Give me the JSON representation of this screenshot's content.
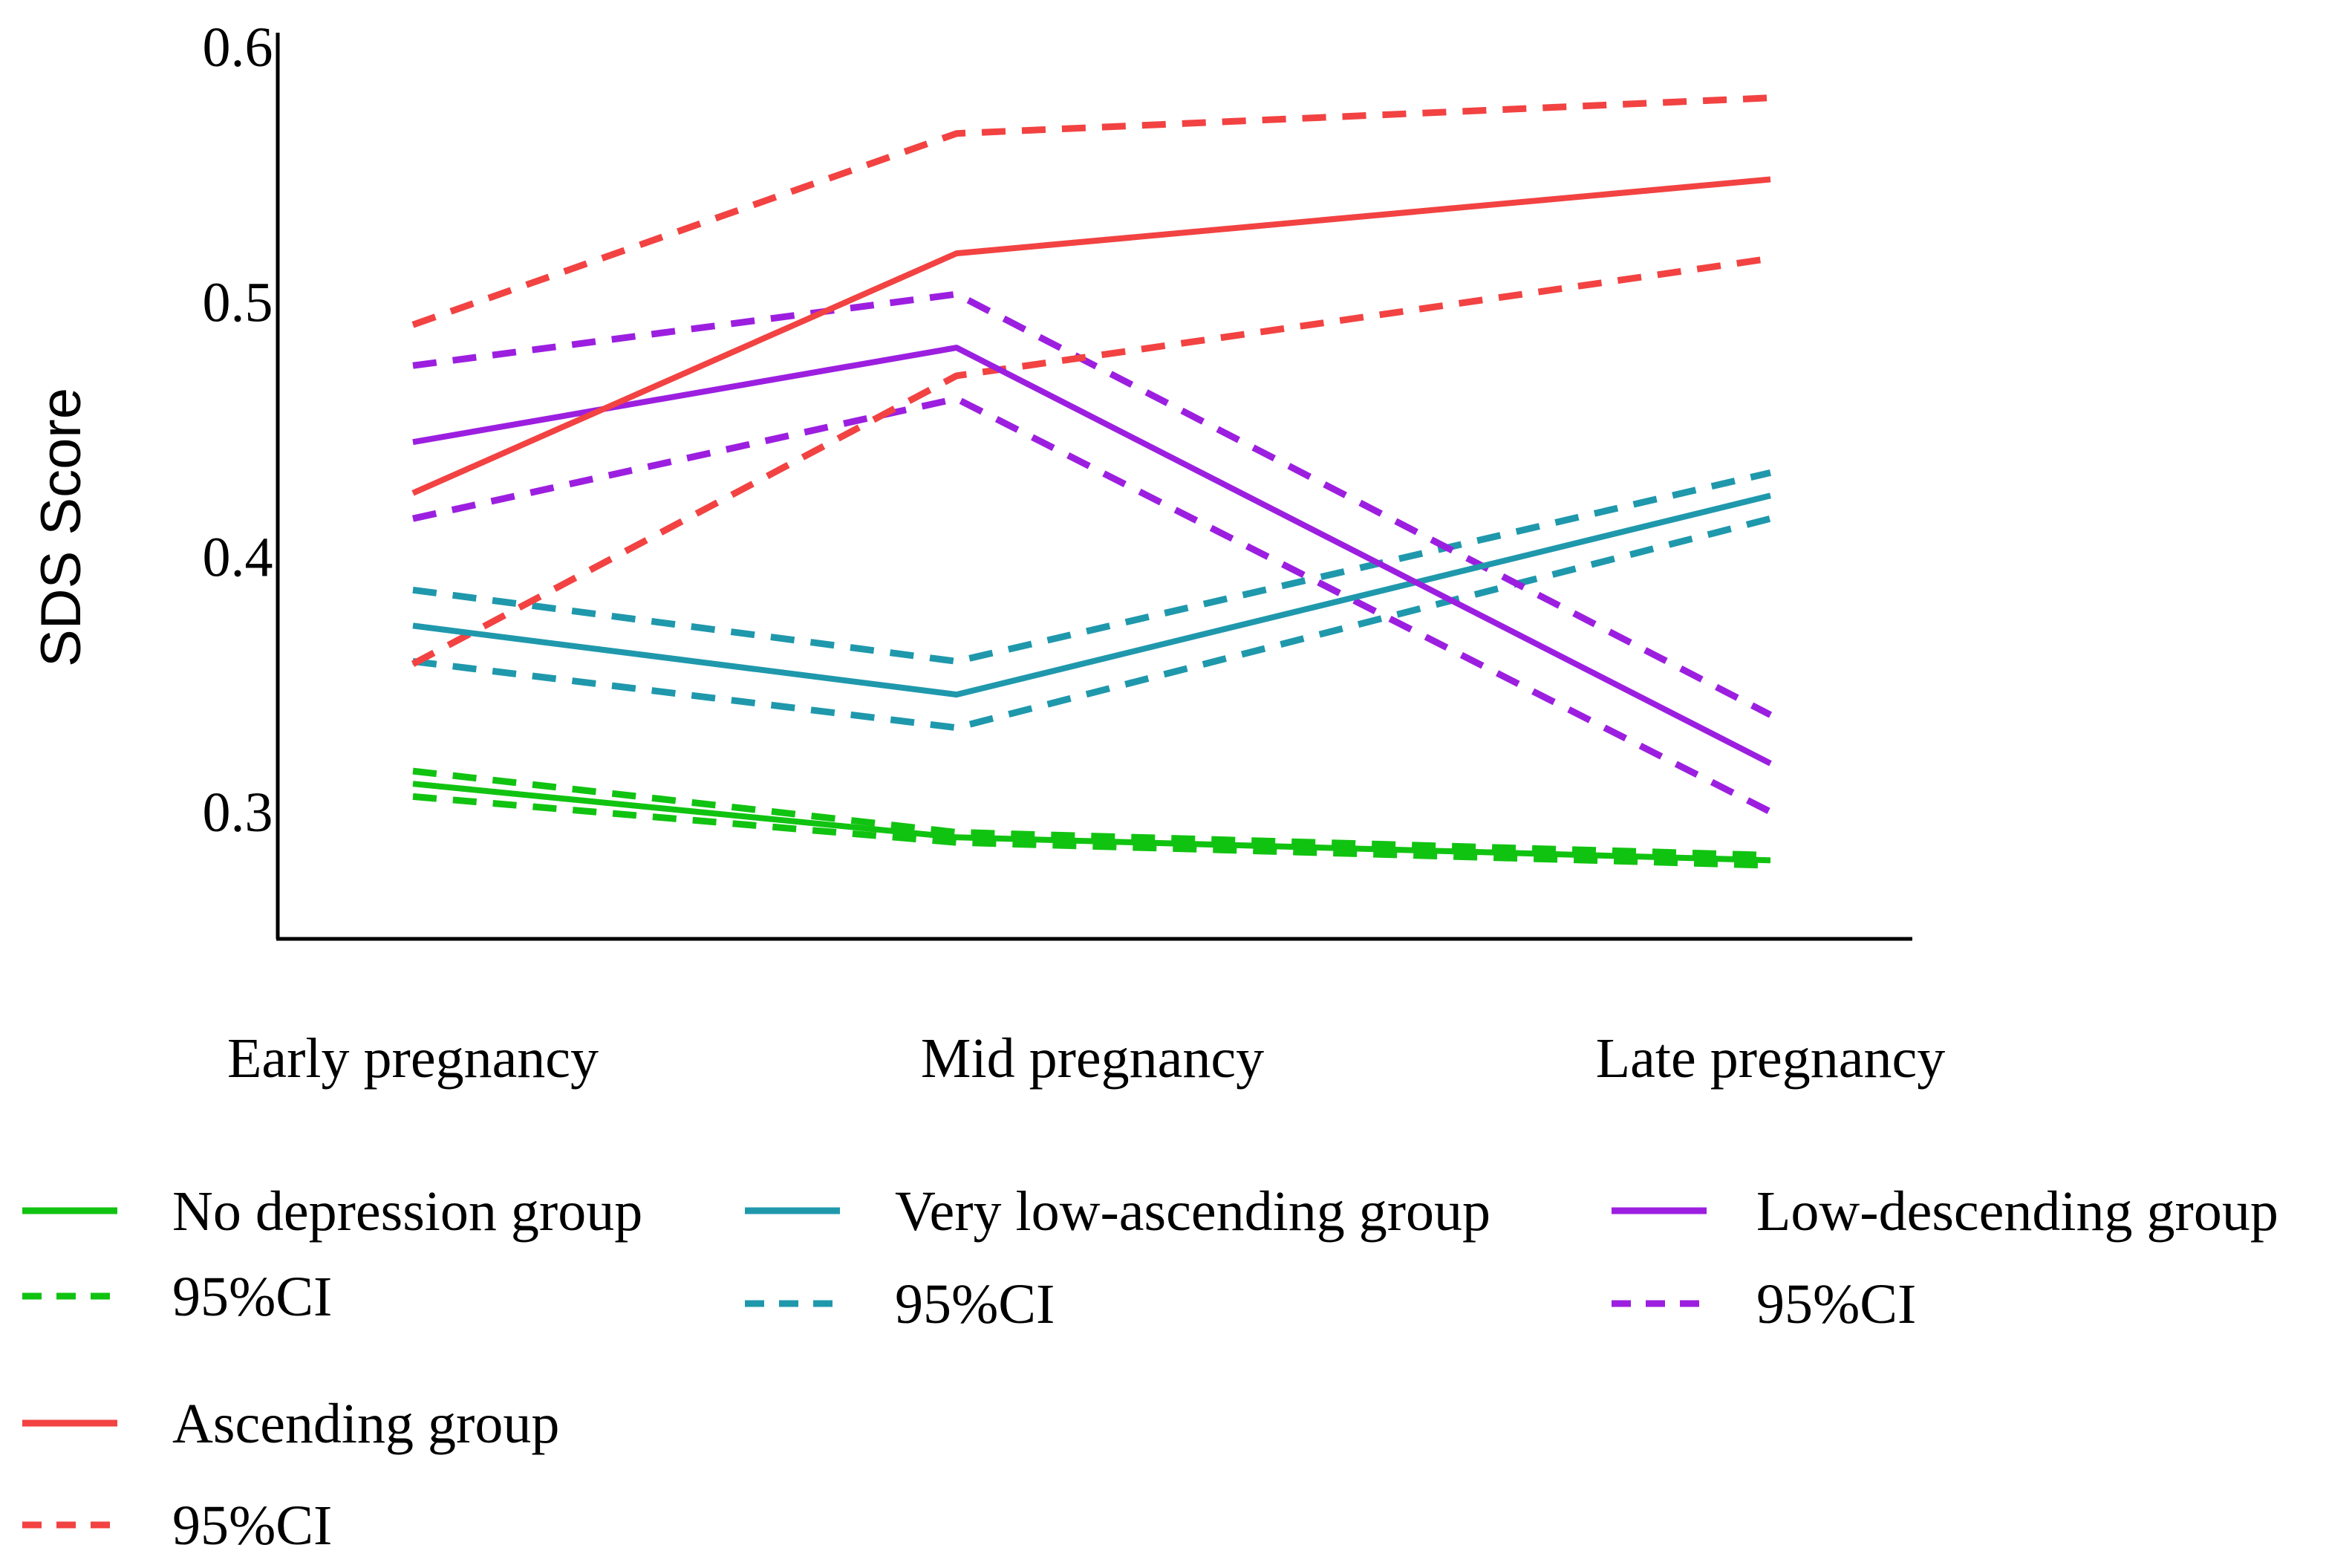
{
  "chart_data": {
    "type": "line",
    "title": "",
    "xlabel": "",
    "ylabel": "SDS Score",
    "categories": [
      "Early pregnancy",
      "Mid pregnancy",
      "Late pregnancy"
    ],
    "ylim": [
      0.25,
      0.6
    ],
    "yticks": [
      "0.3",
      "0.4",
      "0.5",
      "0.6"
    ],
    "ytick_values": [
      0.3,
      0.4,
      0.5,
      0.6
    ],
    "grid": false,
    "legend_position": "bottom",
    "series": [
      {
        "name": "No depression group",
        "style": "solid",
        "color": "#11c311",
        "values": [
          0.311,
          0.29,
          0.281
        ]
      },
      {
        "name": "95%CI",
        "group": "No depression group",
        "style": "dashed-upper",
        "color": "#11c311",
        "values": [
          0.316,
          0.292,
          0.283
        ]
      },
      {
        "name": "95%CI",
        "group": "No depression group",
        "style": "dashed-lower",
        "color": "#11c311",
        "values": [
          0.306,
          0.288,
          0.279
        ]
      },
      {
        "name": "Very low-ascending group",
        "style": "solid",
        "color": "#1f98ac",
        "values": [
          0.373,
          0.346,
          0.424
        ]
      },
      {
        "name": "95%CI",
        "group": "Very low-ascending group",
        "style": "dashed-upper",
        "color": "#1f98ac",
        "values": [
          0.387,
          0.359,
          0.433
        ]
      },
      {
        "name": "95%CI",
        "group": "Very low-ascending group",
        "style": "dashed-lower",
        "color": "#1f98ac",
        "values": [
          0.359,
          0.333,
          0.415
        ]
      },
      {
        "name": "Low-descending group",
        "style": "solid",
        "color": "#9c1fe0",
        "values": [
          0.445,
          0.482,
          0.319
        ]
      },
      {
        "name": "95%CI",
        "group": "Low-descending group",
        "style": "dashed-upper",
        "color": "#9c1fe0",
        "values": [
          0.475,
          0.503,
          0.338
        ]
      },
      {
        "name": "95%CI",
        "group": "Low-descending group",
        "style": "dashed-lower",
        "color": "#9c1fe0",
        "values": [
          0.415,
          0.462,
          0.3
        ]
      },
      {
        "name": "Ascending group",
        "style": "solid",
        "color": "#f24242",
        "values": [
          0.425,
          0.519,
          0.548
        ]
      },
      {
        "name": "95%CI",
        "group": "Ascending group",
        "style": "dashed-upper",
        "color": "#f24242",
        "values": [
          0.491,
          0.566,
          0.58
        ]
      },
      {
        "name": "95%CI",
        "group": "Ascending group",
        "style": "dashed-lower",
        "color": "#f24242",
        "values": [
          0.358,
          0.471,
          0.517
        ]
      }
    ],
    "legend": [
      {
        "label": "No depression group",
        "style": "solid",
        "color": "#11c311"
      },
      {
        "label": "95%CI",
        "style": "dashed",
        "color": "#11c311"
      },
      {
        "label": "Very low-ascending group",
        "style": "solid",
        "color": "#1f98ac"
      },
      {
        "label": "95%CI",
        "style": "dashed",
        "color": "#1f98ac"
      },
      {
        "label": "Low-descending group",
        "style": "solid",
        "color": "#9c1fe0"
      },
      {
        "label": "95%CI",
        "style": "dashed",
        "color": "#9c1fe0"
      },
      {
        "label": "Ascending group",
        "style": "solid",
        "color": "#f24242"
      },
      {
        "label": "95%CI",
        "style": "dashed",
        "color": "#f24242"
      }
    ]
  }
}
